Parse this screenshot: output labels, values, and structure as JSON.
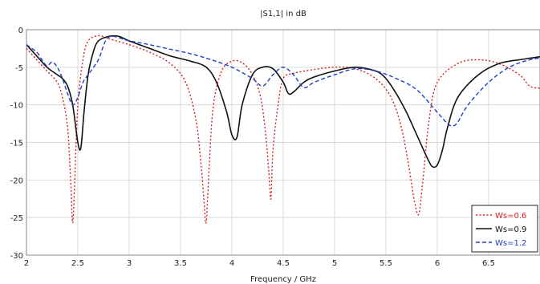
{
  "chart_data": {
    "type": "line",
    "title": "|S1,1| in dB",
    "xlabel": "Frequency / GHz",
    "ylabel": "",
    "xlim": [
      2,
      7
    ],
    "ylim": [
      -30,
      0
    ],
    "xticks": [
      2,
      2.5,
      3,
      3.5,
      4,
      4.5,
      5,
      5.5,
      6,
      6.5
    ],
    "yticks": [
      0,
      -5,
      -10,
      -15,
      -20,
      -25,
      -30
    ],
    "grid": true,
    "legend_position": "bottom-right",
    "series": [
      {
        "name": "Ws=0.6",
        "color": "#d62020",
        "dash": "dotted",
        "x": [
          2.0,
          2.1,
          2.2,
          2.3,
          2.35,
          2.4,
          2.43,
          2.45,
          2.47,
          2.5,
          2.55,
          2.6,
          2.7,
          2.8,
          3.0,
          3.2,
          3.4,
          3.55,
          3.65,
          3.7,
          3.73,
          3.75,
          3.78,
          3.82,
          3.9,
          4.0,
          4.1,
          4.2,
          4.28,
          4.33,
          4.36,
          4.38,
          4.4,
          4.45,
          4.5,
          4.6,
          4.8,
          5.0,
          5.2,
          5.4,
          5.55,
          5.65,
          5.72,
          5.78,
          5.82,
          5.86,
          5.92,
          6.0,
          6.2,
          6.4,
          6.6,
          6.8,
          6.9,
          7.0
        ],
        "y": [
          -2.5,
          -4,
          -5.5,
          -7,
          -9,
          -13,
          -20,
          -25.7,
          -20,
          -10,
          -4,
          -1.5,
          -0.8,
          -1.2,
          -2,
          -3,
          -4.5,
          -7,
          -12,
          -18,
          -23,
          -25.6,
          -18,
          -10,
          -5.5,
          -4.2,
          -4.4,
          -6,
          -9,
          -14,
          -19,
          -22.5,
          -16,
          -10,
          -6.5,
          -5.8,
          -5.3,
          -5.0,
          -5.2,
          -6.5,
          -9,
          -13,
          -18,
          -23,
          -24.5,
          -20,
          -12,
          -7,
          -4.5,
          -4,
          -4.5,
          -6,
          -7.5,
          -7.8
        ]
      },
      {
        "name": "Ws=0.9",
        "color": "#111111",
        "dash": "solid",
        "x": [
          2.0,
          2.1,
          2.2,
          2.3,
          2.35,
          2.4,
          2.45,
          2.5,
          2.53,
          2.56,
          2.6,
          2.65,
          2.7,
          2.8,
          2.9,
          3.0,
          3.2,
          3.4,
          3.6,
          3.75,
          3.85,
          3.95,
          4.0,
          4.05,
          4.1,
          4.2,
          4.3,
          4.4,
          4.5,
          4.55,
          4.6,
          4.7,
          4.8,
          5.0,
          5.2,
          5.4,
          5.5,
          5.6,
          5.7,
          5.8,
          5.9,
          5.95,
          6.0,
          6.05,
          6.1,
          6.2,
          6.4,
          6.6,
          6.8,
          6.9,
          7.0
        ],
        "y": [
          -2,
          -3.5,
          -5,
          -6,
          -6.5,
          -7.5,
          -10,
          -15,
          -15.7,
          -11,
          -6,
          -3,
          -1.5,
          -0.9,
          -0.9,
          -1.5,
          -2.5,
          -3.5,
          -4.2,
          -5,
          -7,
          -11,
          -14,
          -14.3,
          -10,
          -6,
          -5,
          -5.2,
          -7,
          -8.5,
          -8.3,
          -7,
          -6.3,
          -5.5,
          -5.0,
          -5.5,
          -6.5,
          -8.5,
          -11,
          -14,
          -17,
          -18.2,
          -18,
          -16,
          -13,
          -9,
          -6,
          -4.5,
          -4,
          -3.8,
          -3.6
        ]
      },
      {
        "name": "Ws=1.2",
        "color": "#1f3fc8",
        "dash": "dashed",
        "x": [
          2.0,
          2.1,
          2.15,
          2.2,
          2.25,
          2.3,
          2.35,
          2.4,
          2.45,
          2.5,
          2.55,
          2.6,
          2.7,
          2.8,
          3.0,
          3.2,
          3.4,
          3.6,
          3.8,
          4.0,
          4.2,
          4.3,
          4.4,
          4.5,
          4.6,
          4.7,
          4.8,
          5.0,
          5.2,
          5.4,
          5.6,
          5.8,
          6.0,
          6.1,
          6.15,
          6.2,
          6.3,
          6.5,
          6.7,
          6.9,
          7.0
        ],
        "y": [
          -2,
          -3,
          -4,
          -4.8,
          -4.3,
          -5,
          -6.5,
          -8.5,
          -10,
          -9,
          -7,
          -6,
          -4,
          -1,
          -1.5,
          -2,
          -2.6,
          -3.2,
          -4,
          -5,
          -6.5,
          -7.5,
          -6,
          -5,
          -6,
          -7.7,
          -7,
          -6,
          -5.2,
          -5.5,
          -6.5,
          -8,
          -11,
          -12.5,
          -12.8,
          -12.3,
          -10,
          -7,
          -5,
          -4,
          -3.8
        ]
      }
    ]
  }
}
